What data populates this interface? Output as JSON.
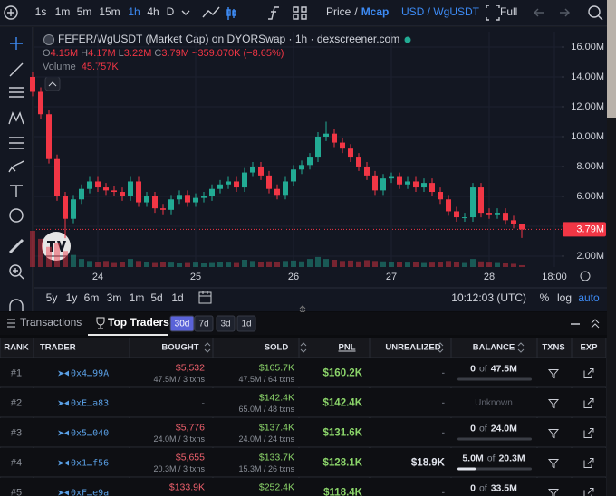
{
  "toolbar": {
    "intervals": [
      "1s",
      "1m",
      "5m",
      "15m",
      "1h",
      "4h",
      "D"
    ],
    "active_interval": 4,
    "price": "Price",
    "separator": "/",
    "mcap": "Mcap",
    "currency": "USD / WgUSDT",
    "full": "Full"
  },
  "chart_data": {
    "type": "candlestick",
    "title": "FEFER/WgUSDT (Market Cap) on DYORSwap · 1h · dexscreener.com",
    "ohlc_header": [
      {
        "key": "O",
        "value": "4.15M"
      },
      {
        "key": "H",
        "value": "4.17M"
      },
      {
        "key": "L",
        "value": "3.22M"
      },
      {
        "key": "C",
        "value": "3.79M"
      }
    ],
    "change": "−359.070K (−8.65%)",
    "volume_label": "Volume",
    "volume_value": "45.757K",
    "up_color": "#22ab94",
    "down_color": "#f23645",
    "categories": [
      null,
      null,
      null,
      null,
      null,
      null,
      null,
      null,
      "24",
      null,
      null,
      null,
      null,
      null,
      null,
      null,
      null,
      null,
      null,
      null,
      "25",
      null,
      null,
      null,
      null,
      null,
      null,
      null,
      null,
      null,
      null,
      null,
      "26",
      null,
      null,
      null,
      null,
      null,
      null,
      null,
      null,
      null,
      null,
      null,
      "27",
      null,
      null,
      null,
      null,
      null,
      null,
      null,
      null,
      null,
      null,
      null,
      "28",
      null,
      null,
      null,
      null,
      null,
      null,
      null,
      "18:00"
    ],
    "open": [
      14.0,
      13.0,
      11.5,
      8.5,
      6.0,
      4.5,
      5.8,
      6.5,
      7.0,
      6.6,
      6.4,
      6.3,
      6.0,
      7.0,
      5.6,
      6.0,
      5.2,
      5.1,
      5.8,
      6.1,
      5.6,
      5.9,
      6.0,
      6.5,
      6.8,
      7.0,
      6.6,
      7.6,
      8.0,
      7.4,
      6.5,
      6.1,
      7.0,
      7.8,
      8.1,
      8.6,
      10.0,
      10.2,
      9.6,
      9.2,
      8.6,
      8.0,
      7.4,
      6.4,
      7.2,
      7.3,
      6.8,
      7.0,
      6.6,
      6.9,
      6.3,
      5.8,
      5.0,
      4.6,
      4.6,
      6.6,
      4.9,
      4.8,
      4.9,
      4.4,
      4.15,
      null,
      null,
      null,
      null
    ],
    "high": [
      14.3,
      13.3,
      11.8,
      8.8,
      6.3,
      6.1,
      6.8,
      7.3,
      7.3,
      6.9,
      6.7,
      6.6,
      7.3,
      7.3,
      6.3,
      6.3,
      5.5,
      6.1,
      6.4,
      6.4,
      6.2,
      6.3,
      6.8,
      7.1,
      7.3,
      7.3,
      7.9,
      8.3,
      8.3,
      7.7,
      6.8,
      7.3,
      8.1,
      8.4,
      8.9,
      10.3,
      11.0,
      10.5,
      9.9,
      9.5,
      8.9,
      8.3,
      7.7,
      7.5,
      7.6,
      7.6,
      7.3,
      7.3,
      7.2,
      7.2,
      6.6,
      6.1,
      5.3,
      4.9,
      6.9,
      6.9,
      5.2,
      5.2,
      5.2,
      4.7,
      4.17,
      null,
      null,
      null,
      null
    ],
    "low": [
      12.7,
      11.2,
      8.2,
      5.7,
      3.2,
      4.2,
      5.5,
      6.2,
      6.3,
      6.1,
      6.0,
      5.7,
      5.7,
      5.3,
      5.3,
      4.9,
      4.8,
      4.8,
      5.5,
      5.3,
      5.3,
      5.6,
      5.7,
      6.2,
      6.5,
      6.3,
      6.3,
      7.3,
      7.1,
      6.2,
      5.8,
      5.8,
      6.7,
      7.5,
      7.8,
      8.3,
      9.7,
      9.3,
      8.9,
      8.3,
      7.7,
      7.1,
      6.1,
      6.1,
      6.9,
      6.5,
      6.5,
      6.3,
      6.3,
      6.0,
      5.5,
      4.7,
      4.3,
      4.3,
      4.3,
      4.6,
      4.5,
      4.5,
      4.1,
      3.85,
      3.22,
      null,
      null,
      null,
      null
    ],
    "close": [
      13.0,
      11.5,
      8.5,
      6.0,
      4.5,
      5.8,
      6.5,
      7.0,
      6.6,
      6.4,
      6.3,
      6.0,
      7.0,
      5.6,
      6.0,
      5.2,
      5.1,
      5.8,
      6.1,
      5.6,
      5.9,
      6.0,
      6.5,
      6.8,
      7.0,
      6.6,
      7.6,
      8.0,
      7.4,
      6.5,
      6.1,
      7.0,
      7.8,
      8.1,
      8.6,
      10.0,
      10.2,
      9.6,
      9.2,
      8.6,
      8.0,
      7.4,
      6.4,
      7.2,
      7.3,
      6.8,
      7.0,
      6.6,
      6.9,
      6.3,
      5.8,
      5.0,
      4.6,
      4.6,
      6.6,
      4.9,
      4.8,
      4.9,
      4.4,
      4.15,
      3.79,
      null,
      null,
      null,
      null
    ],
    "volume": [
      900,
      700,
      500,
      600,
      400,
      300,
      200,
      150,
      120,
      150,
      100,
      120,
      200,
      150,
      120,
      100,
      130,
      110,
      90,
      100,
      110,
      90,
      100,
      120,
      110,
      100,
      180,
      150,
      120,
      140,
      130,
      150,
      160,
      140,
      200,
      250,
      200,
      180,
      150,
      160,
      140,
      170,
      150,
      140,
      130,
      120,
      110,
      120,
      100,
      110,
      130,
      150,
      120,
      100,
      200,
      140,
      110,
      100,
      90,
      80,
      45.757,
      null,
      null,
      null,
      null
    ],
    "ylim": [
      1.27,
      17.03
    ],
    "yticks": [
      {
        "value": 2,
        "label": "2.00M"
      },
      {
        "value": 4,
        "label": "4.00M"
      },
      {
        "value": 6,
        "label": "6.00M"
      },
      {
        "value": 8,
        "label": "8.00M"
      },
      {
        "value": 10,
        "label": "10.00M"
      },
      {
        "value": 12,
        "label": "12.00M"
      },
      {
        "value": 14,
        "label": "14.00M"
      },
      {
        "value": 16,
        "label": "16.00M"
      }
    ],
    "last_price": {
      "value": 3.79,
      "label": "3.79M"
    },
    "grid": true
  },
  "range_bar": {
    "ranges": [
      "5y",
      "1y",
      "6m",
      "3m",
      "1m",
      "5d",
      "1d"
    ],
    "clock": "10:12:03 (UTC)",
    "scale_options": [
      "%",
      "log",
      "auto"
    ]
  },
  "tabs": {
    "items": [
      "Transactions",
      "Top Traders"
    ],
    "active": 1,
    "periods": [
      "30d",
      "7d",
      "3d",
      "1d"
    ],
    "active_period": 0
  },
  "table": {
    "columns": [
      {
        "label": "RANK",
        "sortable": false
      },
      {
        "label": "TRADER",
        "sortable": false
      },
      {
        "label": "BOUGHT",
        "sortable": true
      },
      {
        "label": "SOLD",
        "sortable": true
      },
      {
        "label": "PNL",
        "sortable": false
      },
      {
        "label": "UNREALIZED",
        "sortable": true
      },
      {
        "label": "BALANCE",
        "sortable": true
      },
      {
        "label": "TXNS",
        "sortable": false
      },
      {
        "label": "EXP",
        "sortable": false
      }
    ],
    "rows": [
      {
        "rank": "#1",
        "trader": "0x4…99A",
        "bought": {
          "amount": "$5,532",
          "detail": "47.5M / 3 txns"
        },
        "sold": {
          "amount": "$165.7K",
          "detail": "47.5M / 64 txns"
        },
        "pnl": "$160.2K",
        "unrealized": "-",
        "balance": {
          "held": "0",
          "of": "of",
          "total": "47.5M"
        }
      },
      {
        "rank": "#2",
        "trader": "0xE…a83",
        "bought": {
          "amount": "-"
        },
        "sold": {
          "amount": "$142.4K",
          "detail": "65.0M / 48 txns"
        },
        "pnl": "$142.4K",
        "unrealized": "-",
        "balance": {
          "unknown": "Unknown"
        }
      },
      {
        "rank": "#3",
        "trader": "0x5…040",
        "bought": {
          "amount": "$5,776",
          "detail": "24.0M / 3 txns"
        },
        "sold": {
          "amount": "$137.4K",
          "detail": "24.0M / 24 txns"
        },
        "pnl": "$131.6K",
        "unrealized": "-",
        "balance": {
          "held": "0",
          "of": "of",
          "total": "24.0M"
        }
      },
      {
        "rank": "#4",
        "trader": "0x1…f56",
        "bought": {
          "amount": "$5,655",
          "detail": "20.3M / 3 txns"
        },
        "sold": {
          "amount": "$133.7K",
          "detail": "15.3M / 26 txns"
        },
        "pnl": "$128.1K",
        "unrealized": "$18.9K",
        "balance": {
          "held": "5.0M",
          "of": "of",
          "total": "20.3M"
        }
      },
      {
        "rank": "#5",
        "trader": "0xF…e9a",
        "bought": {
          "amount": "$133.9K"
        },
        "sold": {
          "amount": "$252.4K"
        },
        "pnl": "$118.4K",
        "unrealized": "-",
        "balance": {
          "held": "0",
          "of": "of",
          "total": "33.5M"
        }
      }
    ]
  }
}
